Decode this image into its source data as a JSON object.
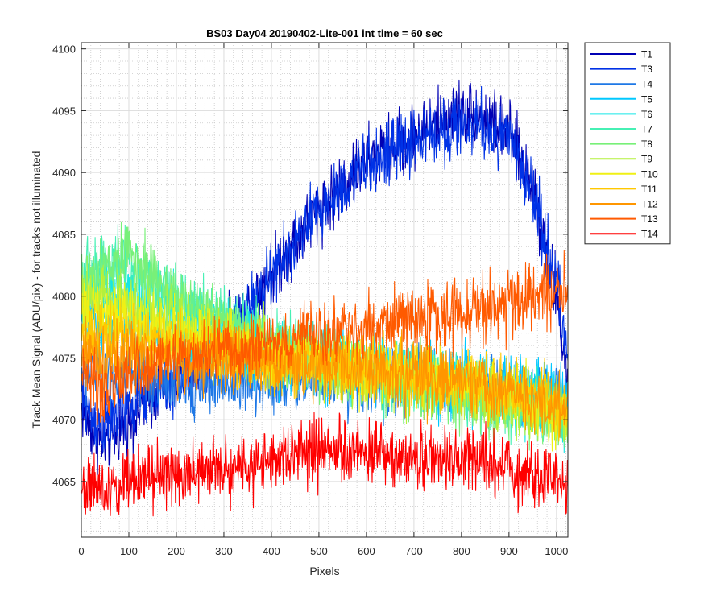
{
  "chart_data": {
    "type": "line",
    "title": "BS03 Day04 20190402-Lite-001 int time = 60 sec",
    "xlabel": "Pixels",
    "ylabel": "Track Mean Signal (ADU/pix) - for tracks not illuminated",
    "xlim": [
      0,
      1024
    ],
    "ylim": [
      4060.5,
      4100.5
    ],
    "xticks": [
      0,
      100,
      200,
      300,
      400,
      500,
      600,
      700,
      800,
      900,
      1000
    ],
    "yticks": [
      4065,
      4070,
      4075,
      4080,
      4085,
      4090,
      4095,
      4100
    ],
    "grid": "major and minor",
    "legend_position": "outside-top-right",
    "noise_note_amplitude_adu": 2.5,
    "series": [
      {
        "name": "T1",
        "color": "#0000b4",
        "x": [
          0,
          25,
          50,
          100,
          150,
          200,
          300,
          400,
          500,
          600,
          700,
          800,
          850,
          900,
          950,
          1000,
          1024
        ],
        "y": [
          4071,
          4069,
          4068,
          4070,
          4072,
          4073,
          4076,
          4082,
          4087,
          4091,
          4093,
          4095,
          4094.5,
          4093,
          4089,
          4080,
          4073
        ]
      },
      {
        "name": "T3",
        "color": "#0032e6",
        "x": [
          0,
          25,
          50,
          100,
          150,
          200,
          300,
          400,
          500,
          600,
          700,
          800,
          850,
          900,
          950,
          1000,
          1024
        ],
        "y": [
          4072,
          4070,
          4069.5,
          4071,
          4072.5,
          4073,
          4076,
          4081.5,
          4087,
          4090.5,
          4092.5,
          4094,
          4093.5,
          4092.5,
          4088.5,
          4081,
          4075
        ]
      },
      {
        "name": "T4",
        "color": "#1e78e6",
        "x": [
          0,
          100,
          200,
          300,
          400,
          500,
          600,
          700,
          800,
          900,
          1000,
          1024
        ],
        "y": [
          4074,
          4073.5,
          4073,
          4073,
          4073,
          4073.5,
          4073,
          4073,
          4072.5,
          4072.5,
          4072,
          4072
        ]
      },
      {
        "name": "T5",
        "color": "#00c8ff",
        "x": [
          0,
          100,
          200,
          300,
          400,
          500,
          600,
          700,
          800,
          900,
          1000,
          1024
        ],
        "y": [
          4078,
          4077.5,
          4077,
          4076,
          4075,
          4074.5,
          4074,
          4073.5,
          4073,
          4072.5,
          4072,
          4072
        ]
      },
      {
        "name": "T6",
        "color": "#14e6e6",
        "x": [
          0,
          100,
          200,
          300,
          400,
          500,
          600,
          700,
          800,
          900,
          1000,
          1024
        ],
        "y": [
          4080,
          4080.5,
          4078.5,
          4077,
          4076,
          4075,
          4074,
          4073.5,
          4073,
          4072,
          4071,
          4070.5
        ]
      },
      {
        "name": "T7",
        "color": "#46f0b4",
        "x": [
          0,
          100,
          200,
          300,
          400,
          500,
          600,
          700,
          800,
          900,
          1000,
          1024
        ],
        "y": [
          4082,
          4082.5,
          4080,
          4078,
          4076.5,
          4075,
          4074,
          4073,
          4072.5,
          4071.5,
          4070.5,
          4070
        ]
      },
      {
        "name": "T8",
        "color": "#78f078",
        "x": [
          0,
          100,
          200,
          300,
          400,
          500,
          600,
          700,
          800,
          900,
          1000,
          1024
        ],
        "y": [
          4081,
          4083.5,
          4080,
          4077.5,
          4076,
          4074.5,
          4073.5,
          4073,
          4072,
          4071,
          4070,
          4069.5
        ]
      },
      {
        "name": "T9",
        "color": "#b4f03c",
        "x": [
          0,
          100,
          200,
          300,
          400,
          500,
          600,
          700,
          800,
          900,
          1000,
          1024
        ],
        "y": [
          4080,
          4079.5,
          4078,
          4076.5,
          4075.5,
          4074.5,
          4073.5,
          4073,
          4072.5,
          4071.5,
          4070.5,
          4070
        ]
      },
      {
        "name": "T10",
        "color": "#f0f014",
        "x": [
          0,
          100,
          200,
          300,
          400,
          500,
          600,
          700,
          800,
          900,
          1000,
          1024
        ],
        "y": [
          4079,
          4078,
          4077,
          4076,
          4075,
          4074.5,
          4074,
          4073.5,
          4073,
          4072,
          4071,
          4070.5
        ]
      },
      {
        "name": "T11",
        "color": "#ffc800",
        "x": [
          0,
          100,
          200,
          300,
          400,
          500,
          600,
          700,
          800,
          900,
          1000,
          1024
        ],
        "y": [
          4077,
          4076.5,
          4076,
          4075.5,
          4075,
          4074.5,
          4074,
          4073.5,
          4073,
          4072.5,
          4071.5,
          4071
        ]
      },
      {
        "name": "T12",
        "color": "#ff9600",
        "x": [
          0,
          100,
          200,
          300,
          400,
          500,
          600,
          700,
          800,
          900,
          1000,
          1024
        ],
        "y": [
          4075,
          4075,
          4075,
          4075,
          4074.5,
          4074.5,
          4074,
          4073.5,
          4073,
          4072.5,
          4071.5,
          4071
        ]
      },
      {
        "name": "T13",
        "color": "#ff5a00",
        "x": [
          0,
          25,
          50,
          100,
          200,
          300,
          400,
          500,
          600,
          700,
          800,
          900,
          1000,
          1024
        ],
        "y": [
          4074,
          4073,
          4072,
          4073.5,
          4075,
          4075.5,
          4076,
          4077,
          4077.5,
          4078,
          4078.5,
          4079.5,
          4080,
          4081
        ]
      },
      {
        "name": "T14",
        "color": "#ff0000",
        "x": [
          0,
          50,
          100,
          200,
          300,
          400,
          500,
          600,
          700,
          800,
          900,
          1000,
          1024
        ],
        "y": [
          4065,
          4064,
          4065.5,
          4065.5,
          4066,
          4066.5,
          4067.5,
          4067.5,
          4067,
          4067,
          4066,
          4065,
          4065
        ]
      }
    ]
  }
}
